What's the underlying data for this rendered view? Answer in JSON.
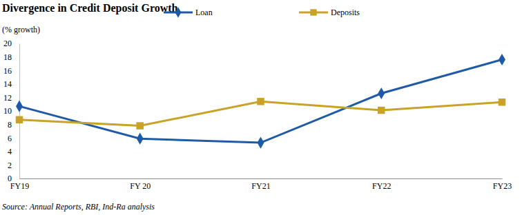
{
  "chart_data": {
    "type": "line",
    "title": "Divergence in Credit Deposit Growth",
    "ylabel": "(% growth)",
    "source": "Source: Annual Reports, RBI, Ind-Ra analysis",
    "categories": [
      "FY19",
      "FY 20",
      "FY21",
      "FY22",
      "FY23"
    ],
    "series": [
      {
        "name": "Loan",
        "color": "#1f5aa6",
        "marker": "diamond",
        "values": [
          10.7,
          5.9,
          5.3,
          12.6,
          17.6
        ]
      },
      {
        "name": "Deposits",
        "color": "#c9a227",
        "marker": "square",
        "values": [
          8.7,
          7.8,
          11.4,
          10.1,
          11.3
        ]
      }
    ],
    "ylim": [
      0,
      20
    ],
    "yticks": [
      0,
      2,
      4,
      6,
      8,
      10,
      12,
      14,
      16,
      18,
      20
    ],
    "grid": false,
    "legend": "top"
  }
}
